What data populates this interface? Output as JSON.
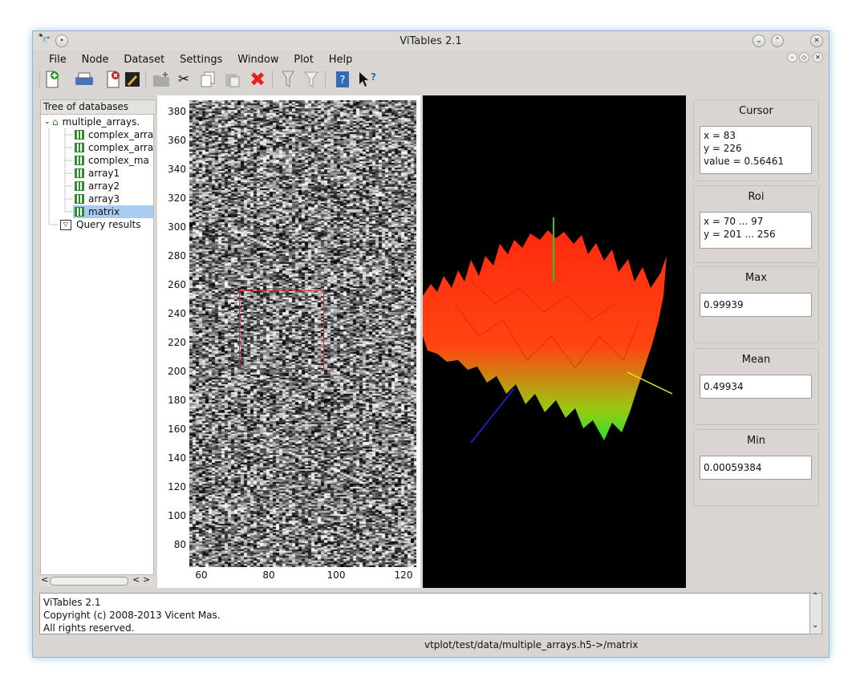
{
  "window": {
    "title": "ViTables 2.1"
  },
  "menu": [
    {
      "label": "File"
    },
    {
      "label": "Node"
    },
    {
      "label": "Dataset"
    },
    {
      "label": "Settings"
    },
    {
      "label": "Window"
    },
    {
      "label": "Plot"
    },
    {
      "label": "Help"
    }
  ],
  "toolbar": [
    {
      "icon": "new-file-icon"
    },
    {
      "icon": "print-icon"
    },
    {
      "icon": "close-file-icon"
    },
    {
      "icon": "edit-icon"
    },
    {
      "icon": "new-group-icon"
    },
    {
      "icon": "cut-icon"
    },
    {
      "icon": "copy-icon"
    },
    {
      "icon": "paste-icon"
    },
    {
      "icon": "delete-icon"
    },
    {
      "icon": "query-icon"
    },
    {
      "icon": "filter-icon"
    },
    {
      "icon": "help-icon"
    },
    {
      "icon": "whats-this-icon"
    }
  ],
  "tree": {
    "title": "Tree of databases",
    "root": "multiple_arrays.",
    "children": [
      "complex_arra",
      "complex_arra",
      "complex_ma",
      "array1",
      "array2",
      "array3",
      "matrix"
    ],
    "selected": "matrix",
    "query": "Query results"
  },
  "plot2d": {
    "y_ticks": [
      "380",
      "360",
      "340",
      "320",
      "300",
      "280",
      "260",
      "240",
      "220",
      "200",
      "180",
      "160",
      "140",
      "120",
      "100",
      "80"
    ],
    "x_ticks": [
      "60",
      "80",
      "100",
      "120"
    ],
    "roi_color": "#cc2a2a"
  },
  "side": {
    "cursor": {
      "title": "Cursor",
      "x": "x = 83",
      "y": "y = 226",
      "value": "value = 0.56461"
    },
    "roi": {
      "title": "Roi",
      "x": "x = 70 ... 97",
      "y": "y = 201 ... 256"
    },
    "max": {
      "title": "Max",
      "value": "0.99939"
    },
    "mean": {
      "title": "Mean",
      "value": "0.49934"
    },
    "min": {
      "title": "Min",
      "value": "0.00059384"
    }
  },
  "log": {
    "line1": "ViTables 2.1",
    "line2": "Copyright (c) 2008-2013 Vicent Mas.",
    "line3": "All rights reserved."
  },
  "status": {
    "path": "vtplot/test/data/multiple_arrays.h5->/matrix"
  }
}
